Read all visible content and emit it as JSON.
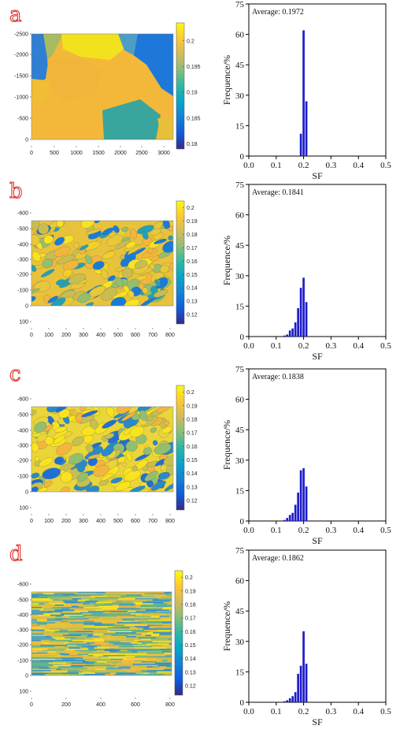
{
  "colors": {
    "bar": "#1c1cc9",
    "parula": [
      "#352a87",
      "#0f5cdd",
      "#1481d6",
      "#06a4ca",
      "#2eb7a4",
      "#87bf77",
      "#d1bb59",
      "#fec832",
      "#f9fb0e"
    ]
  },
  "panels": [
    {
      "letter": "a",
      "map": {
        "y_ticks": [
          "-2500",
          "-2000",
          "-1500",
          "-1000",
          "-500",
          "0"
        ],
        "x_ticks": [
          "0",
          "500",
          "1000",
          "1500",
          "2000",
          "2500",
          "3000"
        ],
        "colorbar_ticks": [
          "0.2",
          "0.195",
          "0.19",
          "0.185",
          "0.18"
        ],
        "colorbar_range": [
          0.179,
          0.2035
        ]
      },
      "hist": {
        "average_text": "Average: 0.1972"
      }
    },
    {
      "letter": "b",
      "map": {
        "y_ticks": [
          "-600",
          "-500",
          "-400",
          "-300",
          "-200",
          "-100",
          "0",
          "100"
        ],
        "x_ticks": [
          "0",
          "100",
          "200",
          "300",
          "400",
          "500",
          "600",
          "700",
          "800"
        ],
        "colorbar_ticks": [
          "0.2",
          "0.19",
          "0.18",
          "0.17",
          "0.16",
          "0.15",
          "0.14",
          "0.13",
          "0.12"
        ],
        "colorbar_range": [
          0.113,
          0.205
        ]
      },
      "hist": {
        "average_text": "Average: 0.1841"
      }
    },
    {
      "letter": "c",
      "map": {
        "y_ticks": [
          "-600",
          "-500",
          "-400",
          "-300",
          "-200",
          "-100",
          "0",
          "100"
        ],
        "x_ticks": [
          "0",
          "100",
          "200",
          "300",
          "400",
          "500",
          "600",
          "700",
          "800"
        ],
        "colorbar_ticks": [
          "0.2",
          "0.19",
          "0.18",
          "0.17",
          "0.16",
          "0.15",
          "0.14",
          "0.13",
          "0.12"
        ],
        "colorbar_range": [
          0.113,
          0.205
        ]
      },
      "hist": {
        "average_text": "Average: 0.1838"
      }
    },
    {
      "letter": "d",
      "map": {
        "y_ticks": [
          "-600",
          "-500",
          "-400",
          "-300",
          "-200",
          "-100",
          "0",
          "100"
        ],
        "x_ticks": [
          "0",
          "200",
          "400",
          "600",
          "800"
        ],
        "colorbar_ticks": [
          "0.2",
          "0.19",
          "0.18",
          "0.17",
          "0.16",
          "0.15",
          "0.14",
          "0.13",
          "0.12"
        ],
        "colorbar_range": [
          0.113,
          0.205
        ]
      },
      "hist": {
        "average_text": "Average: 0.1862"
      }
    }
  ],
  "chart_data": [
    {
      "type": "bar",
      "panel": "a",
      "xlabel": "SF",
      "ylabel": "Frequence/%",
      "xlim": [
        0.0,
        0.5
      ],
      "ylim": [
        0,
        75
      ],
      "x_ticks": [
        "0.0",
        "0.1",
        "0.2",
        "0.3",
        "0.4",
        "0.5"
      ],
      "y_ticks": [
        "0",
        "15",
        "30",
        "45",
        "60",
        "75"
      ],
      "bin_width": 0.01,
      "bins": [
        0.19,
        0.2,
        0.21
      ],
      "values": [
        11,
        62,
        27
      ]
    },
    {
      "type": "bar",
      "panel": "b",
      "xlabel": "SF",
      "ylabel": "Frequence/%",
      "xlim": [
        0.0,
        0.5
      ],
      "ylim": [
        0,
        75
      ],
      "x_ticks": [
        "0.0",
        "0.1",
        "0.2",
        "0.3",
        "0.4",
        "0.5"
      ],
      "y_ticks": [
        "0",
        "15",
        "30",
        "45",
        "60",
        "75"
      ],
      "bin_width": 0.01,
      "bins": [
        0.13,
        0.14,
        0.15,
        0.16,
        0.17,
        0.18,
        0.19,
        0.2,
        0.21
      ],
      "values": [
        0.5,
        1,
        3,
        4,
        7,
        14,
        24,
        29,
        17
      ]
    },
    {
      "type": "bar",
      "panel": "c",
      "xlabel": "SF",
      "ylabel": "Frequence/%",
      "xlim": [
        0.0,
        0.5
      ],
      "ylim": [
        0,
        75
      ],
      "x_ticks": [
        "0.0",
        "0.1",
        "0.2",
        "0.3",
        "0.4",
        "0.5"
      ],
      "y_ticks": [
        "0",
        "15",
        "30",
        "45",
        "60",
        "75"
      ],
      "bin_width": 0.01,
      "bins": [
        0.13,
        0.14,
        0.15,
        0.16,
        0.17,
        0.18,
        0.19,
        0.2,
        0.21
      ],
      "values": [
        0.5,
        1.5,
        3,
        4,
        8,
        14,
        25,
        26,
        17
      ]
    },
    {
      "type": "bar",
      "panel": "d",
      "xlabel": "SF",
      "ylabel": "Frequence/%",
      "xlim": [
        0.0,
        0.5
      ],
      "ylim": [
        0,
        75
      ],
      "x_ticks": [
        "0.0",
        "0.1",
        "0.2",
        "0.3",
        "0.4",
        "0.5"
      ],
      "y_ticks": [
        "0",
        "15",
        "30",
        "45",
        "60",
        "75"
      ],
      "bin_width": 0.01,
      "bins": [
        0.13,
        0.14,
        0.15,
        0.16,
        0.17,
        0.18,
        0.19,
        0.2,
        0.21
      ],
      "values": [
        0.5,
        1,
        2,
        3,
        5,
        14,
        18,
        35,
        19
      ]
    }
  ]
}
